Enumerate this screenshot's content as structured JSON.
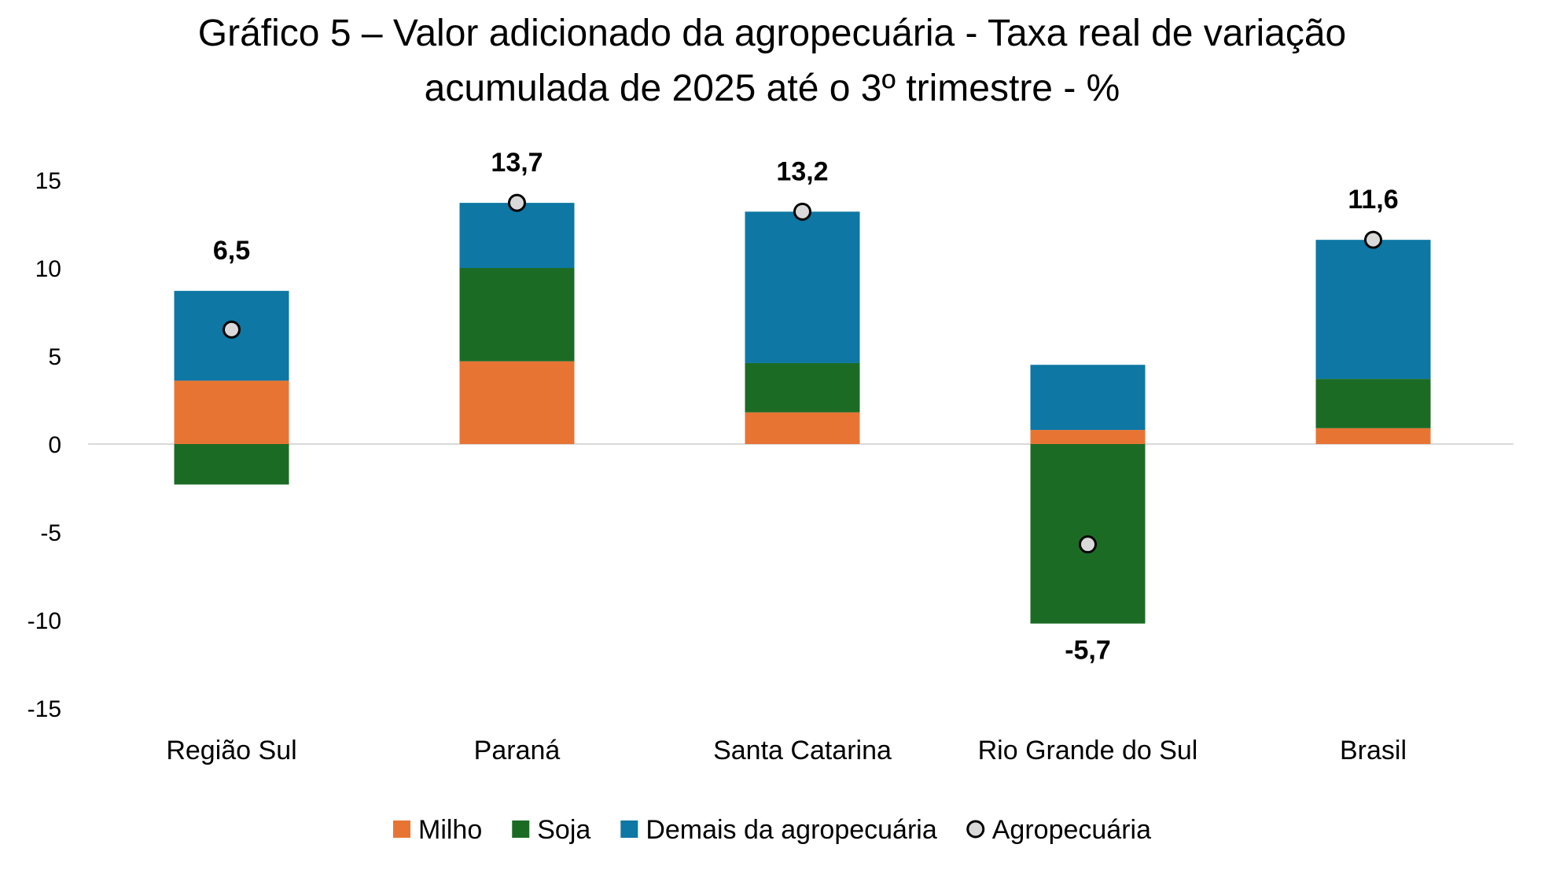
{
  "chart_data": {
    "type": "bar",
    "stacked": true,
    "title_lines": [
      "Gráfico 5 – Valor adicionado da agropecuária - Taxa real de variação",
      "acumulada de 2025 até o 3º trimestre - %"
    ],
    "categories": [
      "Região Sul",
      "Paraná",
      "Santa Catarina",
      "Rio Grande do Sul",
      "Brasil"
    ],
    "series": [
      {
        "name": "Milho",
        "color": "#E87433",
        "values": [
          3.6,
          4.7,
          1.8,
          0.8,
          0.9
        ]
      },
      {
        "name": "Soja",
        "color": "#1C6B25",
        "values": [
          -2.3,
          5.3,
          2.8,
          -10.2,
          2.8
        ]
      },
      {
        "name": "Demais da agropecuária",
        "color": "#0E77A4",
        "values": [
          5.1,
          3.7,
          8.6,
          3.7,
          7.9
        ]
      }
    ],
    "total": {
      "name": "Agropecuária",
      "values": [
        6.5,
        13.7,
        13.2,
        -5.7,
        11.6
      ],
      "labels": [
        "6,5",
        "13,7",
        "13,2",
        "-5,7",
        "11,6"
      ],
      "marker_fill": "#D9D9D9",
      "marker_stroke": "#000000"
    },
    "ylim": [
      -15,
      15
    ],
    "yticks": [
      15,
      10,
      5,
      0,
      -5,
      -10,
      -15
    ],
    "ytick_labels": [
      "15",
      "10",
      "5",
      "0",
      "-5",
      "-10",
      "-15"
    ],
    "xlabel": "",
    "ylabel": "",
    "grid": false,
    "legend_position": "bottom",
    "zero_line_color": "#D9D9D9"
  }
}
